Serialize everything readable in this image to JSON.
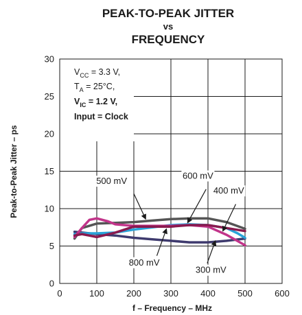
{
  "chart_data": {
    "type": "line",
    "title_lines": [
      "PEAK-TO-PEAK JITTER",
      "vs",
      "FREQUENCY"
    ],
    "xlabel": "f – Frequency – MHz",
    "ylabel": "Peak-to-Peak Jitter – ps",
    "xlim": [
      0,
      600
    ],
    "ylim": [
      0,
      30
    ],
    "x_ticks": [
      0,
      100,
      200,
      300,
      400,
      500,
      600
    ],
    "y_ticks": [
      0,
      5,
      10,
      15,
      20,
      25,
      30
    ],
    "grid": true,
    "conditions": {
      "vcc": {
        "base": "V",
        "sub": "CC",
        "rest": " = 3.3 V,"
      },
      "ta": {
        "base": "T",
        "sub": "A",
        "rest": " = 25°C,"
      },
      "vic": {
        "base": "V",
        "sub": "IC",
        "rest": " = 1.2 V,"
      },
      "input": "Input = Clock"
    },
    "series": [
      {
        "name": "300 mV",
        "color": "#3e3a6e",
        "x": [
          40,
          100,
          150,
          200,
          250,
          300,
          350,
          400,
          450,
          500
        ],
        "y": [
          6.9,
          6.6,
          6.4,
          6.1,
          5.9,
          5.7,
          5.5,
          5.5,
          5.7,
          6.0
        ]
      },
      {
        "name": "400 mV",
        "color": "#2aa3d8",
        "x": [
          40,
          60,
          100,
          150,
          200,
          250,
          300,
          350,
          400,
          450,
          480,
          500
        ],
        "y": [
          6.6,
          6.7,
          6.7,
          6.8,
          7.2,
          7.5,
          7.8,
          7.9,
          7.8,
          7.4,
          6.7,
          6.1
        ]
      },
      {
        "name": "500 mV",
        "color": "#555555",
        "x": [
          40,
          60,
          100,
          150,
          200,
          250,
          300,
          350,
          400,
          450,
          500
        ],
        "y": [
          6.0,
          7.4,
          8.0,
          8.1,
          8.2,
          8.4,
          8.6,
          8.7,
          8.7,
          8.2,
          7.3
        ]
      },
      {
        "name": "600 mV",
        "color": "#c2348a",
        "x": [
          40,
          60,
          80,
          100,
          130,
          150,
          200,
          250,
          300,
          350,
          400,
          450,
          500
        ],
        "y": [
          6.2,
          7.4,
          8.5,
          8.7,
          8.3,
          7.9,
          7.7,
          7.7,
          7.7,
          7.8,
          7.6,
          6.5,
          5.1
        ]
      },
      {
        "name": "800 mV",
        "color": "#8a1a4e",
        "x": [
          40,
          60,
          100,
          150,
          200,
          250,
          300,
          350,
          400,
          450,
          500
        ],
        "y": [
          6.4,
          6.6,
          6.2,
          6.8,
          7.6,
          7.6,
          7.6,
          7.8,
          7.8,
          7.4,
          7.0
        ]
      }
    ],
    "annotations": [
      {
        "label": "500 mV",
        "text_x": 140,
        "text_y": 13.3,
        "arrow_from": [
          200,
          12.0
        ],
        "arrow_to": [
          232,
          8.6
        ]
      },
      {
        "label": "600 mV",
        "text_x": 373,
        "text_y": 14.0,
        "arrow_from": [
          395,
          12.6
        ],
        "arrow_to": [
          345,
          8.1
        ]
      },
      {
        "label": "400 mV",
        "text_x": 456,
        "text_y": 12.0,
        "arrow_from": [
          475,
          10.6
        ],
        "arrow_to": [
          440,
          7.0
        ]
      },
      {
        "label": "800 mV",
        "text_x": 228,
        "text_y": 2.4,
        "arrow_from": [
          262,
          3.7
        ],
        "arrow_to": [
          288,
          7.3
        ]
      },
      {
        "label": "300 mV",
        "text_x": 408,
        "text_y": 1.4,
        "arrow_from": [
          398,
          2.7
        ],
        "arrow_to": [
          420,
          5.7
        ]
      }
    ]
  }
}
